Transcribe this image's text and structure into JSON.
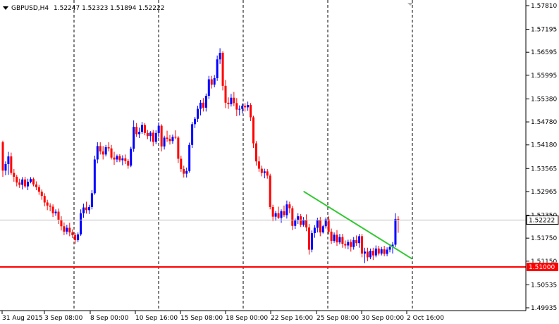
{
  "header": {
    "symbol_timeframe": "GBPUSD,H4",
    "ohlc": "1.52247 1.52323 1.51894 1.52222"
  },
  "chart_data": {
    "type": "candlestick",
    "title": "GBPUSD,H4",
    "ylim": [
      1.4993,
      1.5787
    ],
    "y_ticks": [
      "1.57810",
      "1.57195",
      "1.56595",
      "1.55995",
      "1.55380",
      "1.54780",
      "1.54180",
      "1.53565",
      "1.52965",
      "1.52350",
      "1.51750",
      "1.51150",
      "1.50535",
      "1.49935"
    ],
    "x_ticks": [
      "31 Aug 2015",
      "3 Sep 08:00",
      "8 Sep 00:00",
      "10 Sep 16:00",
      "15 Sep 08:00",
      "18 Sep 00:00",
      "22 Sep 16:00",
      "25 Sep 08:00",
      "30 Sep 00:00",
      "2 Oct 16:00"
    ],
    "grid": "vertical dashed",
    "current_price": "1.52222",
    "support_price": "1.51000",
    "support_value": 1.51,
    "current_value": 1.52222,
    "trendline": {
      "start_bar": 108,
      "start_value": 1.5297,
      "end_bar": 147,
      "end_value": 1.5121,
      "color": "#32c832"
    },
    "colors": {
      "bull": "#0000ff",
      "bear": "#ff0000",
      "support": "#ff0000",
      "grid": "#000000",
      "current_line": "#c0c0c0"
    },
    "candles": [
      [
        1.5425,
        1.5429,
        1.5335,
        1.5351
      ],
      [
        1.5351,
        1.5375,
        1.5339,
        1.5368
      ],
      [
        1.5368,
        1.54,
        1.534,
        1.5388
      ],
      [
        1.5388,
        1.5398,
        1.534,
        1.5345
      ],
      [
        1.5345,
        1.5355,
        1.5322,
        1.5335
      ],
      [
        1.5335,
        1.534,
        1.531,
        1.532
      ],
      [
        1.532,
        1.533,
        1.5306,
        1.5314
      ],
      [
        1.5314,
        1.5334,
        1.5302,
        1.5328
      ],
      [
        1.5328,
        1.5335,
        1.5306,
        1.531
      ],
      [
        1.531,
        1.533,
        1.53,
        1.5322
      ],
      [
        1.5322,
        1.5334,
        1.5318,
        1.5329
      ],
      [
        1.5329,
        1.5333,
        1.531,
        1.5315
      ],
      [
        1.5315,
        1.5323,
        1.53,
        1.5308
      ],
      [
        1.5308,
        1.5314,
        1.5288,
        1.5296
      ],
      [
        1.5296,
        1.5302,
        1.5275,
        1.5285
      ],
      [
        1.5285,
        1.5292,
        1.5258,
        1.5268
      ],
      [
        1.5268,
        1.5275,
        1.5248,
        1.526
      ],
      [
        1.526,
        1.5266,
        1.5245,
        1.5257
      ],
      [
        1.5257,
        1.5263,
        1.523,
        1.524
      ],
      [
        1.524,
        1.525,
        1.5233,
        1.5244
      ],
      [
        1.5244,
        1.5252,
        1.5212,
        1.5223
      ],
      [
        1.5223,
        1.5232,
        1.5195,
        1.5206
      ],
      [
        1.5206,
        1.5216,
        1.5183,
        1.5192
      ],
      [
        1.5192,
        1.521,
        1.5185,
        1.5202
      ],
      [
        1.5202,
        1.5215,
        1.518,
        1.519
      ],
      [
        1.519,
        1.5198,
        1.5175,
        1.5183
      ],
      [
        1.5183,
        1.5188,
        1.516,
        1.517
      ],
      [
        1.517,
        1.519,
        1.5165,
        1.5185
      ],
      [
        1.5185,
        1.525,
        1.5181,
        1.524
      ],
      [
        1.524,
        1.5265,
        1.5228,
        1.5255
      ],
      [
        1.5255,
        1.527,
        1.5239,
        1.5248
      ],
      [
        1.5248,
        1.5262,
        1.5238,
        1.5256
      ],
      [
        1.5256,
        1.53,
        1.525,
        1.5292
      ],
      [
        1.5292,
        1.539,
        1.5288,
        1.538
      ],
      [
        1.538,
        1.5425,
        1.537,
        1.5415
      ],
      [
        1.5415,
        1.5425,
        1.5393,
        1.5401
      ],
      [
        1.5401,
        1.5415,
        1.538,
        1.5393
      ],
      [
        1.5393,
        1.5418,
        1.5388,
        1.5412
      ],
      [
        1.5412,
        1.5425,
        1.5401,
        1.5409
      ],
      [
        1.5409,
        1.5418,
        1.538,
        1.5385
      ],
      [
        1.5385,
        1.54,
        1.5366,
        1.538
      ],
      [
        1.538,
        1.5393,
        1.5373,
        1.5389
      ],
      [
        1.5389,
        1.5394,
        1.5373,
        1.5378
      ],
      [
        1.5378,
        1.5391,
        1.5365,
        1.5383
      ],
      [
        1.5383,
        1.5393,
        1.5368,
        1.5376
      ],
      [
        1.5376,
        1.5381,
        1.5356,
        1.5364
      ],
      [
        1.5364,
        1.5413,
        1.536,
        1.5408
      ],
      [
        1.5408,
        1.5482,
        1.54,
        1.5465
      ],
      [
        1.5465,
        1.5475,
        1.5439,
        1.5446
      ],
      [
        1.5446,
        1.5463,
        1.5436,
        1.5452
      ],
      [
        1.5452,
        1.5478,
        1.5447,
        1.547
      ],
      [
        1.547,
        1.5475,
        1.5443,
        1.5449
      ],
      [
        1.5449,
        1.5457,
        1.5433,
        1.5441
      ],
      [
        1.5441,
        1.5454,
        1.5427,
        1.545
      ],
      [
        1.545,
        1.5457,
        1.5415,
        1.5426
      ],
      [
        1.5426,
        1.5456,
        1.542,
        1.5449
      ],
      [
        1.5449,
        1.5477,
        1.5437,
        1.5468
      ],
      [
        1.5468,
        1.5472,
        1.5401,
        1.5414
      ],
      [
        1.5414,
        1.5442,
        1.5406,
        1.5437
      ],
      [
        1.5437,
        1.5455,
        1.5426,
        1.5434
      ],
      [
        1.5434,
        1.5444,
        1.5419,
        1.5428
      ],
      [
        1.5428,
        1.5445,
        1.5421,
        1.5439
      ],
      [
        1.5439,
        1.5456,
        1.5433,
        1.5437
      ],
      [
        1.5437,
        1.5441,
        1.5371,
        1.5382
      ],
      [
        1.5382,
        1.539,
        1.5348,
        1.5355
      ],
      [
        1.5355,
        1.5364,
        1.5333,
        1.5343
      ],
      [
        1.5343,
        1.5359,
        1.5333,
        1.535
      ],
      [
        1.535,
        1.5424,
        1.5346,
        1.5418
      ],
      [
        1.5418,
        1.5478,
        1.541,
        1.5472
      ],
      [
        1.5472,
        1.5491,
        1.5462,
        1.5486
      ],
      [
        1.5486,
        1.552,
        1.5478,
        1.5512
      ],
      [
        1.5512,
        1.5535,
        1.5495,
        1.5528
      ],
      [
        1.5528,
        1.554,
        1.5505,
        1.5515
      ],
      [
        1.5515,
        1.5552,
        1.5505,
        1.5546
      ],
      [
        1.5546,
        1.5598,
        1.5538,
        1.5589
      ],
      [
        1.5589,
        1.5598,
        1.5565,
        1.5575
      ],
      [
        1.5575,
        1.56,
        1.5568,
        1.5592
      ],
      [
        1.5592,
        1.5651,
        1.5585,
        1.5641
      ],
      [
        1.5641,
        1.567,
        1.5629,
        1.5658
      ],
      [
        1.5658,
        1.5662,
        1.556,
        1.5572
      ],
      [
        1.5572,
        1.5587,
        1.5514,
        1.5528
      ],
      [
        1.5528,
        1.5542,
        1.5512,
        1.5524
      ],
      [
        1.5524,
        1.5551,
        1.5518,
        1.5541
      ],
      [
        1.5541,
        1.5556,
        1.5519,
        1.5527
      ],
      [
        1.5527,
        1.554,
        1.5493,
        1.551
      ],
      [
        1.551,
        1.5521,
        1.5495,
        1.5512
      ],
      [
        1.5512,
        1.5526,
        1.55,
        1.552
      ],
      [
        1.552,
        1.5527,
        1.5505,
        1.5516
      ],
      [
        1.5516,
        1.5531,
        1.5507,
        1.5522
      ],
      [
        1.5522,
        1.5527,
        1.548,
        1.549
      ],
      [
        1.549,
        1.5494,
        1.541,
        1.5422
      ],
      [
        1.5422,
        1.5428,
        1.5364,
        1.5375
      ],
      [
        1.5375,
        1.5388,
        1.5348,
        1.5356
      ],
      [
        1.5356,
        1.5364,
        1.5336,
        1.5345
      ],
      [
        1.5345,
        1.5356,
        1.5331,
        1.5349
      ],
      [
        1.5349,
        1.5355,
        1.533,
        1.5338
      ],
      [
        1.5338,
        1.5343,
        1.525,
        1.5256
      ],
      [
        1.5256,
        1.5262,
        1.5219,
        1.5231
      ],
      [
        1.5231,
        1.5246,
        1.522,
        1.524
      ],
      [
        1.524,
        1.5257,
        1.5225,
        1.5228
      ],
      [
        1.5228,
        1.525,
        1.5215,
        1.5245
      ],
      [
        1.5245,
        1.526,
        1.523,
        1.5235
      ],
      [
        1.5235,
        1.5273,
        1.5226,
        1.5263
      ],
      [
        1.5263,
        1.527,
        1.524,
        1.5253
      ],
      [
        1.5253,
        1.5259,
        1.5196,
        1.5207
      ],
      [
        1.5207,
        1.5226,
        1.5199,
        1.5221
      ],
      [
        1.5221,
        1.524,
        1.5212,
        1.5232
      ],
      [
        1.5232,
        1.5238,
        1.5204,
        1.521
      ],
      [
        1.521,
        1.523,
        1.5205,
        1.5222
      ],
      [
        1.5222,
        1.5237,
        1.5193,
        1.5203
      ],
      [
        1.5203,
        1.5212,
        1.5132,
        1.5145
      ],
      [
        1.5145,
        1.5195,
        1.5138,
        1.5188
      ],
      [
        1.5188,
        1.5209,
        1.5176,
        1.5202
      ],
      [
        1.5202,
        1.5228,
        1.519,
        1.5222
      ],
      [
        1.5222,
        1.523,
        1.518,
        1.519
      ],
      [
        1.519,
        1.521,
        1.5187,
        1.5206
      ],
      [
        1.5206,
        1.5229,
        1.52,
        1.5224
      ],
      [
        1.5224,
        1.5233,
        1.5185,
        1.5192
      ],
      [
        1.5192,
        1.52,
        1.516,
        1.5168
      ],
      [
        1.5168,
        1.519,
        1.5163,
        1.5184
      ],
      [
        1.5184,
        1.5196,
        1.5155,
        1.5164
      ],
      [
        1.5164,
        1.5186,
        1.5159,
        1.5178
      ],
      [
        1.5178,
        1.5186,
        1.515,
        1.516
      ],
      [
        1.516,
        1.5169,
        1.5148,
        1.5156
      ],
      [
        1.5156,
        1.5171,
        1.5146,
        1.5165
      ],
      [
        1.5165,
        1.5172,
        1.514,
        1.5152
      ],
      [
        1.5152,
        1.5178,
        1.5145,
        1.517
      ],
      [
        1.517,
        1.5182,
        1.5155,
        1.5162
      ],
      [
        1.5162,
        1.5186,
        1.515,
        1.518
      ],
      [
        1.518,
        1.5186,
        1.5125,
        1.5135
      ],
      [
        1.5135,
        1.515,
        1.511,
        1.514
      ],
      [
        1.514,
        1.515,
        1.5115,
        1.5125
      ],
      [
        1.5125,
        1.5148,
        1.512,
        1.5142
      ],
      [
        1.5142,
        1.515,
        1.5118,
        1.513
      ],
      [
        1.513,
        1.5156,
        1.5125,
        1.5148
      ],
      [
        1.5148,
        1.5155,
        1.513,
        1.5135
      ],
      [
        1.5135,
        1.5152,
        1.513,
        1.5146
      ],
      [
        1.5146,
        1.5155,
        1.5128,
        1.5134
      ],
      [
        1.5134,
        1.5151,
        1.5128,
        1.5145
      ],
      [
        1.5145,
        1.516,
        1.5138,
        1.5152
      ],
      [
        1.5152,
        1.5165,
        1.5135,
        1.5158
      ],
      [
        1.5158,
        1.524,
        1.5152,
        1.5225
      ],
      [
        1.5225,
        1.5232,
        1.5189,
        1.5222
      ]
    ]
  }
}
